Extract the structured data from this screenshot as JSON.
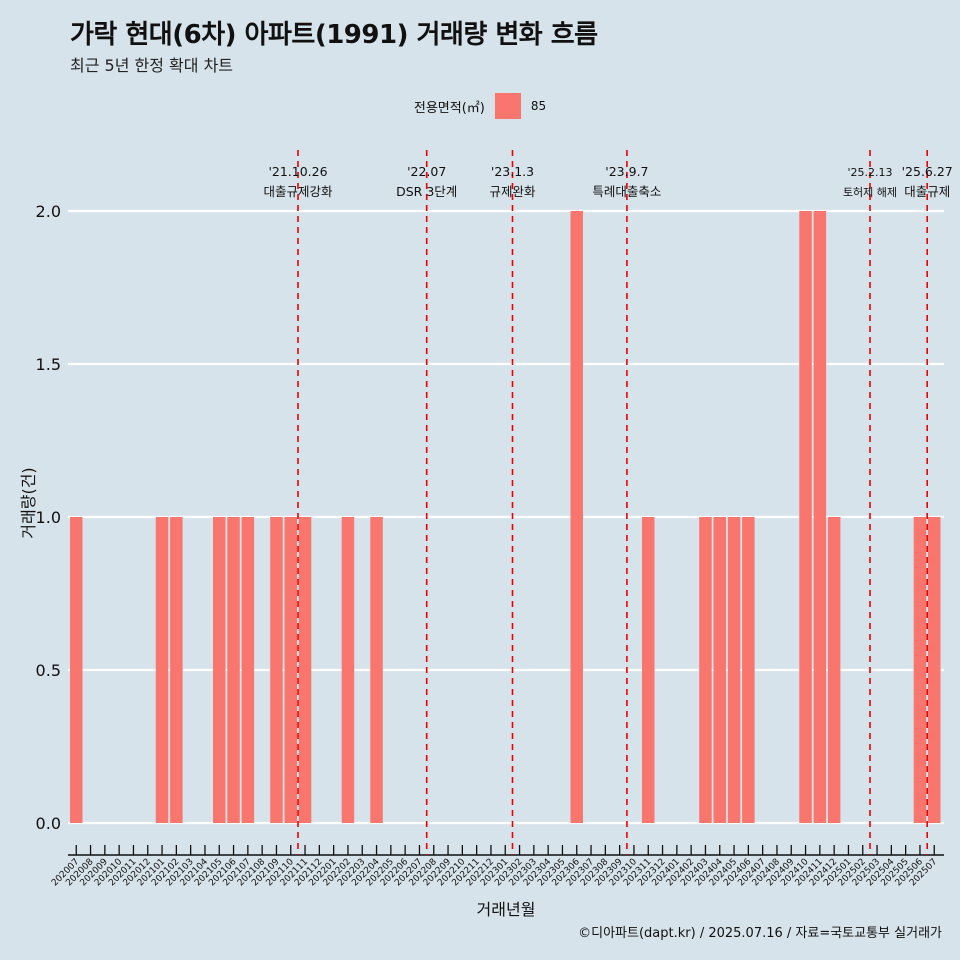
{
  "title": "가락 현대(6차) 아파트(1991) 거래량 변화 흐름",
  "subtitle": "최근 5년 한정 확대 차트",
  "caption": "©디아파트(dapt.kr) / 2025.07.16 / 자료=국토교통부 실거래가",
  "legend": {
    "title": "전용면적(㎡)",
    "entries": [
      "85"
    ]
  },
  "colors": {
    "bar": "#f8766d",
    "background": "#d7e3ea",
    "grid": "#ffffff",
    "event_line": "#ee0000"
  },
  "chart_data": {
    "type": "bar",
    "xlabel": "거래년월",
    "ylabel": "거래량(건)",
    "ylim": [
      0,
      2
    ],
    "yticks": [
      "0.0",
      "0.5",
      "1.0",
      "1.5",
      "2.0"
    ],
    "grid": true,
    "legend_placement": "top",
    "categories": [
      "202007",
      "202008",
      "202009",
      "202010",
      "202011",
      "202012",
      "202101",
      "202102",
      "202103",
      "202104",
      "202105",
      "202106",
      "202107",
      "202108",
      "202109",
      "202110",
      "202111",
      "202112",
      "202201",
      "202202",
      "202203",
      "202204",
      "202205",
      "202206",
      "202207",
      "202208",
      "202209",
      "202210",
      "202211",
      "202212",
      "202301",
      "202302",
      "202303",
      "202304",
      "202305",
      "202306",
      "202307",
      "202308",
      "202309",
      "202310",
      "202311",
      "202312",
      "202401",
      "202402",
      "202403",
      "202404",
      "202405",
      "202406",
      "202407",
      "202408",
      "202409",
      "202410",
      "202411",
      "202412",
      "202501",
      "202502",
      "202503",
      "202504",
      "202505",
      "202506",
      "202507"
    ],
    "series": [
      {
        "name": "85",
        "values": [
          1,
          0,
          0,
          0,
          0,
          0,
          1,
          1,
          0,
          0,
          1,
          1,
          1,
          0,
          1,
          1,
          1,
          0,
          0,
          1,
          0,
          1,
          0,
          0,
          0,
          0,
          0,
          0,
          0,
          0,
          0,
          0,
          0,
          0,
          0,
          2,
          0,
          0,
          0,
          0,
          1,
          0,
          0,
          0,
          1,
          1,
          1,
          1,
          0,
          0,
          0,
          2,
          2,
          1,
          0,
          0,
          0,
          0,
          0,
          1,
          1
        ]
      }
    ],
    "events": [
      {
        "date": "'21.10.26",
        "label": "대출규제강화",
        "after": "202110"
      },
      {
        "date": "'22.07",
        "label": "DSR 3단계",
        "after": "202207"
      },
      {
        "date": "'23.1.3",
        "label": "규제완화",
        "after": "202301"
      },
      {
        "date": "'23.9.7",
        "label": "특례대출축소",
        "after": "202309"
      },
      {
        "date": "'25.2.13",
        "label": "토허제 해제",
        "after": "202502"
      },
      {
        "date": "'25.6.27",
        "label": "대출규제",
        "after": "202506"
      }
    ]
  }
}
